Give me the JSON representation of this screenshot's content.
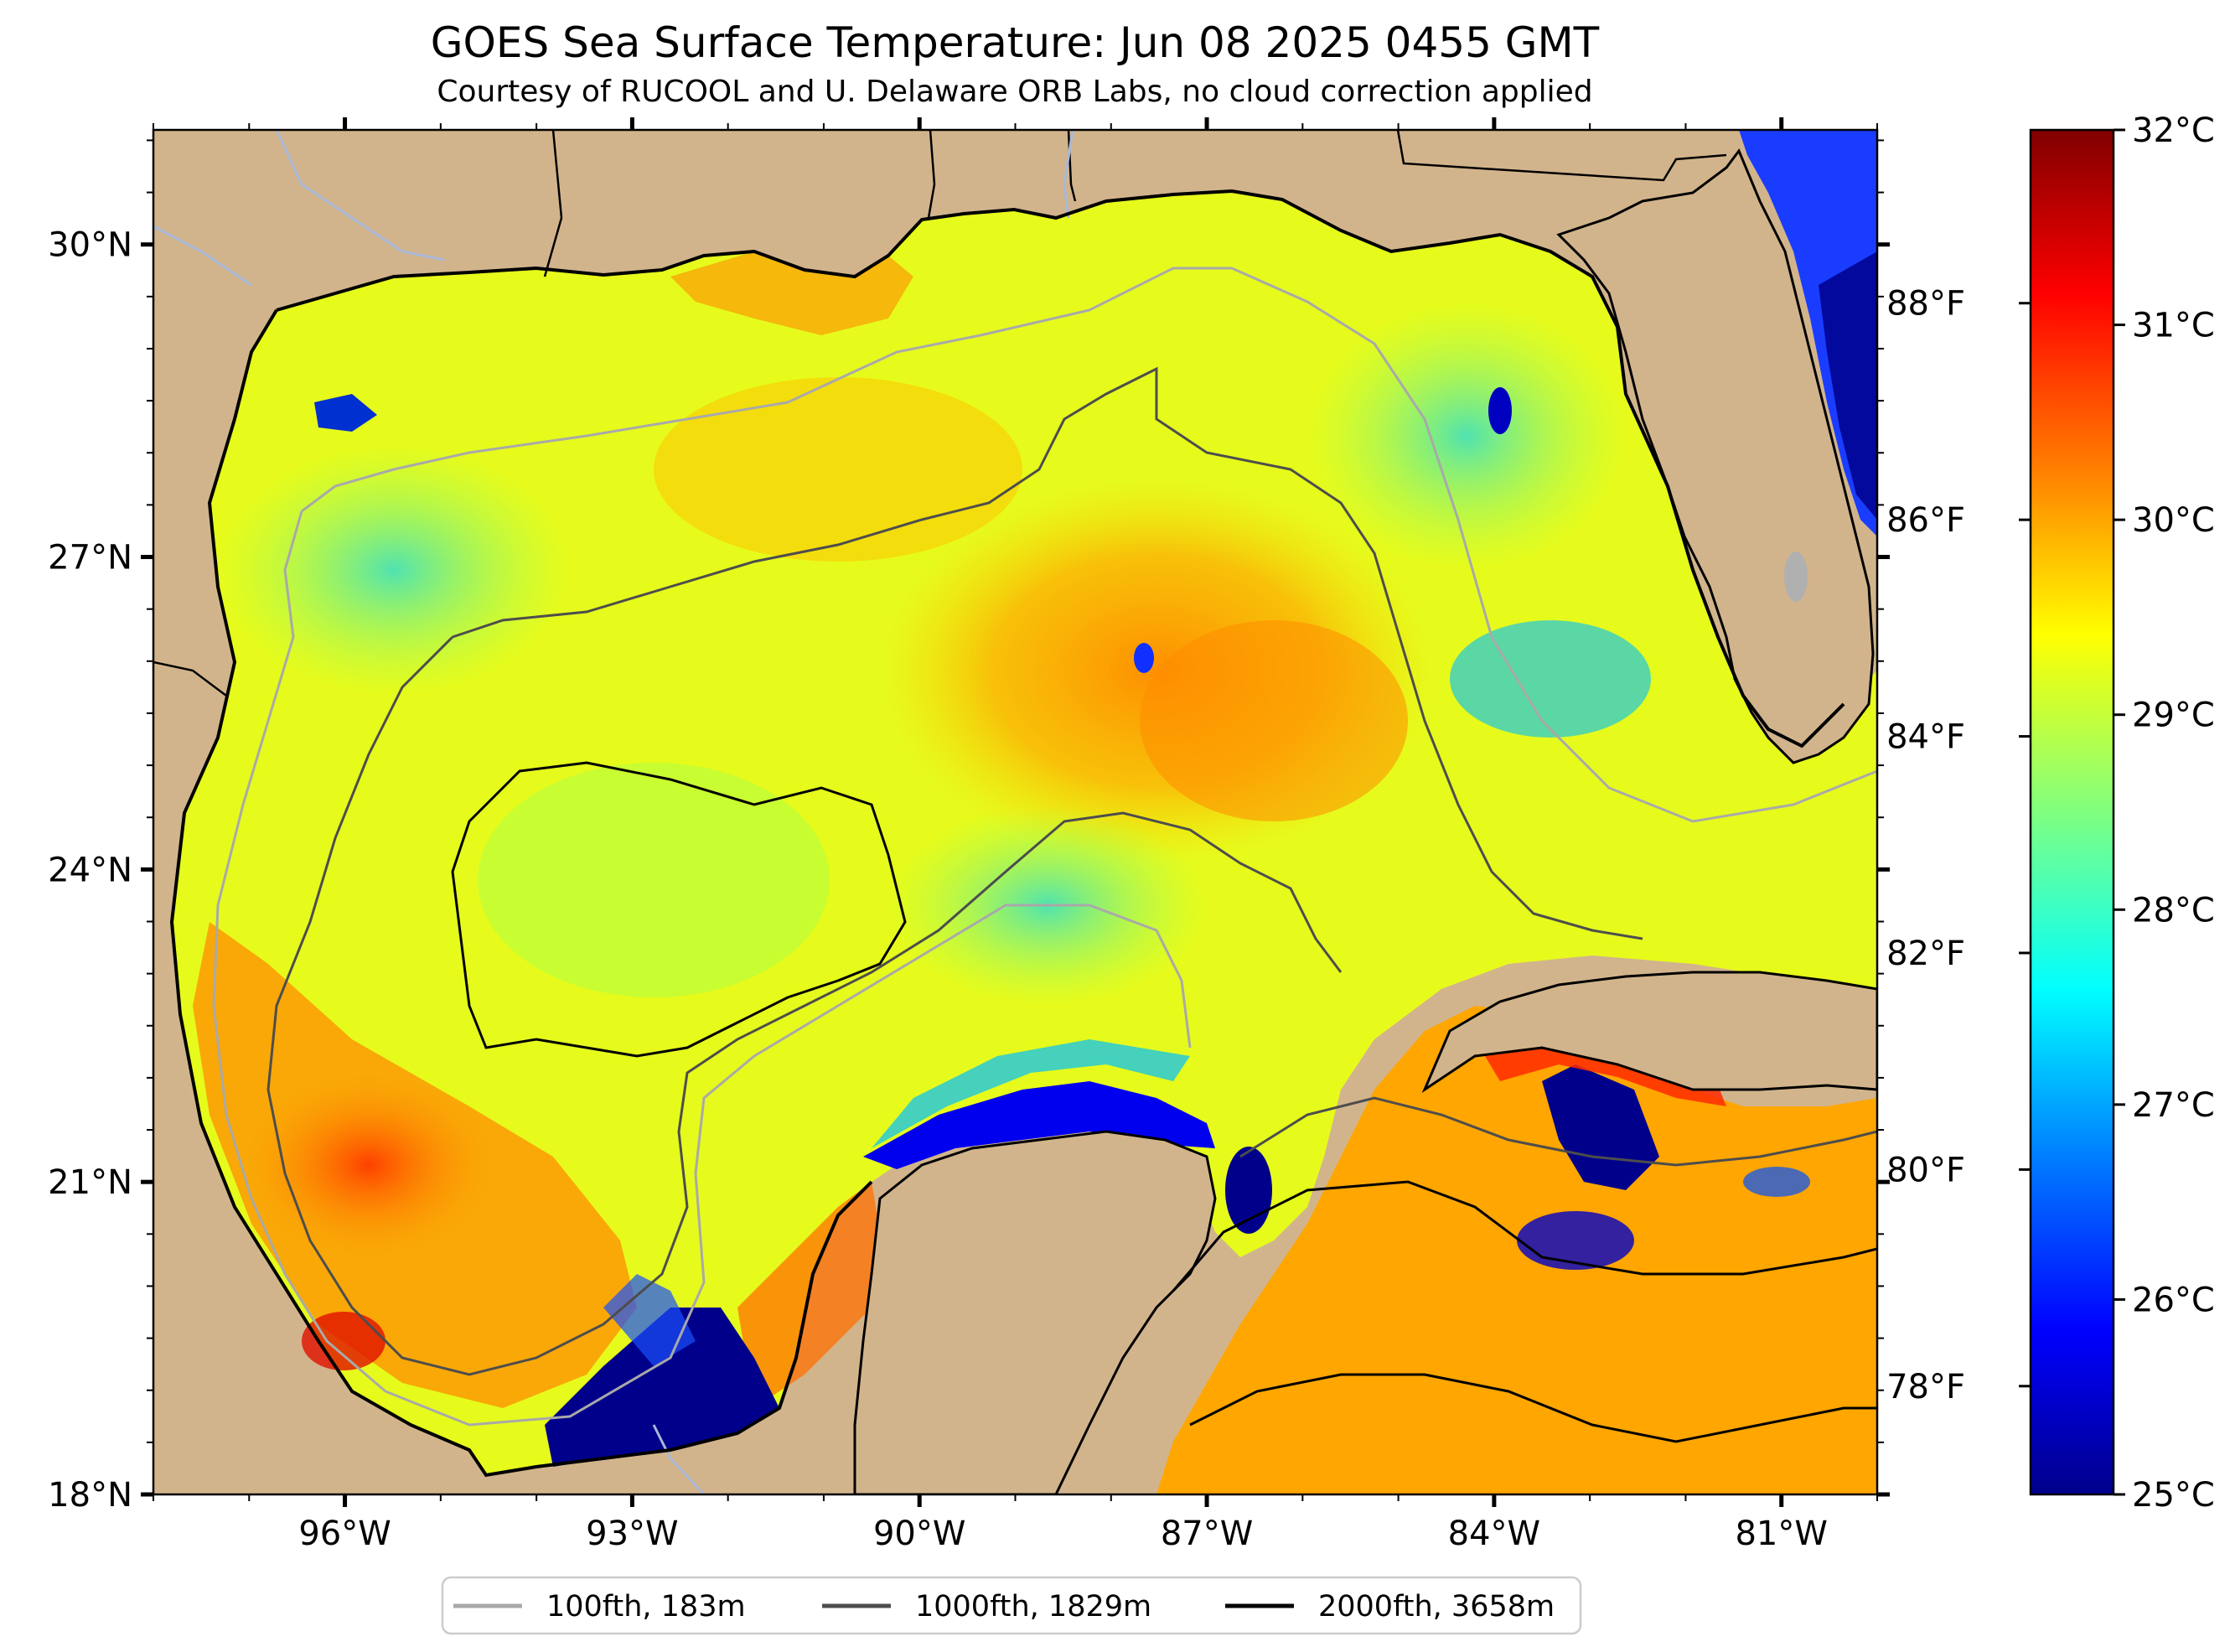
{
  "title": "GOES Sea Surface Temperature: Jun 08 2025 0455 GMT",
  "subtitle": "Courtesy of RUCOOL and U. Delaware ORB Labs, no cloud correction applied",
  "map": {
    "lon_range": [
      -98.0,
      -80.0
    ],
    "lat_range": [
      18.0,
      31.1
    ],
    "lon_ticks": [
      {
        "value": -96,
        "label": "96°W"
      },
      {
        "value": -93,
        "label": "93°W"
      },
      {
        "value": -90,
        "label": "90°W"
      },
      {
        "value": -87,
        "label": "87°W"
      },
      {
        "value": -84,
        "label": "84°W"
      },
      {
        "value": -81,
        "label": "81°W"
      }
    ],
    "lat_ticks": [
      {
        "value": 18,
        "label": "18°N"
      },
      {
        "value": 21,
        "label": "21°N"
      },
      {
        "value": 24,
        "label": "24°N"
      },
      {
        "value": 27,
        "label": "27°N"
      },
      {
        "value": 30,
        "label": "30°N"
      }
    ],
    "land_color": "#d2b48c",
    "river_color": "#a9b8d8"
  },
  "colorbar": {
    "colormap": "jet",
    "celsius_range": [
      25,
      32
    ],
    "celsius_ticks": [
      {
        "value": 25,
        "label": "25°C"
      },
      {
        "value": 26,
        "label": "26°C"
      },
      {
        "value": 27,
        "label": "27°C"
      },
      {
        "value": 28,
        "label": "28°C"
      },
      {
        "value": 29,
        "label": "29°C"
      },
      {
        "value": 30,
        "label": "30°C"
      },
      {
        "value": 31,
        "label": "31°C"
      },
      {
        "value": 32,
        "label": "32°C"
      }
    ],
    "fahrenheit_ticks": [
      {
        "value": 78,
        "label": "78°F"
      },
      {
        "value": 80,
        "label": "80°F"
      },
      {
        "value": 82,
        "label": "82°F"
      },
      {
        "value": 84,
        "label": "84°F"
      },
      {
        "value": 86,
        "label": "86°F"
      },
      {
        "value": 88,
        "label": "88°F"
      }
    ],
    "stops": [
      "#00008b",
      "#0000ff",
      "#0080ff",
      "#00ffff",
      "#80ff80",
      "#ffff00",
      "#ff8000",
      "#ff0000",
      "#800000"
    ]
  },
  "legend": [
    {
      "label": "100fth, 183m",
      "color": "#a9a9a9"
    },
    {
      "label": "1000fth, 1829m",
      "color": "#4d4d4d"
    },
    {
      "label": "2000fth, 3658m",
      "color": "#000000"
    }
  ]
}
